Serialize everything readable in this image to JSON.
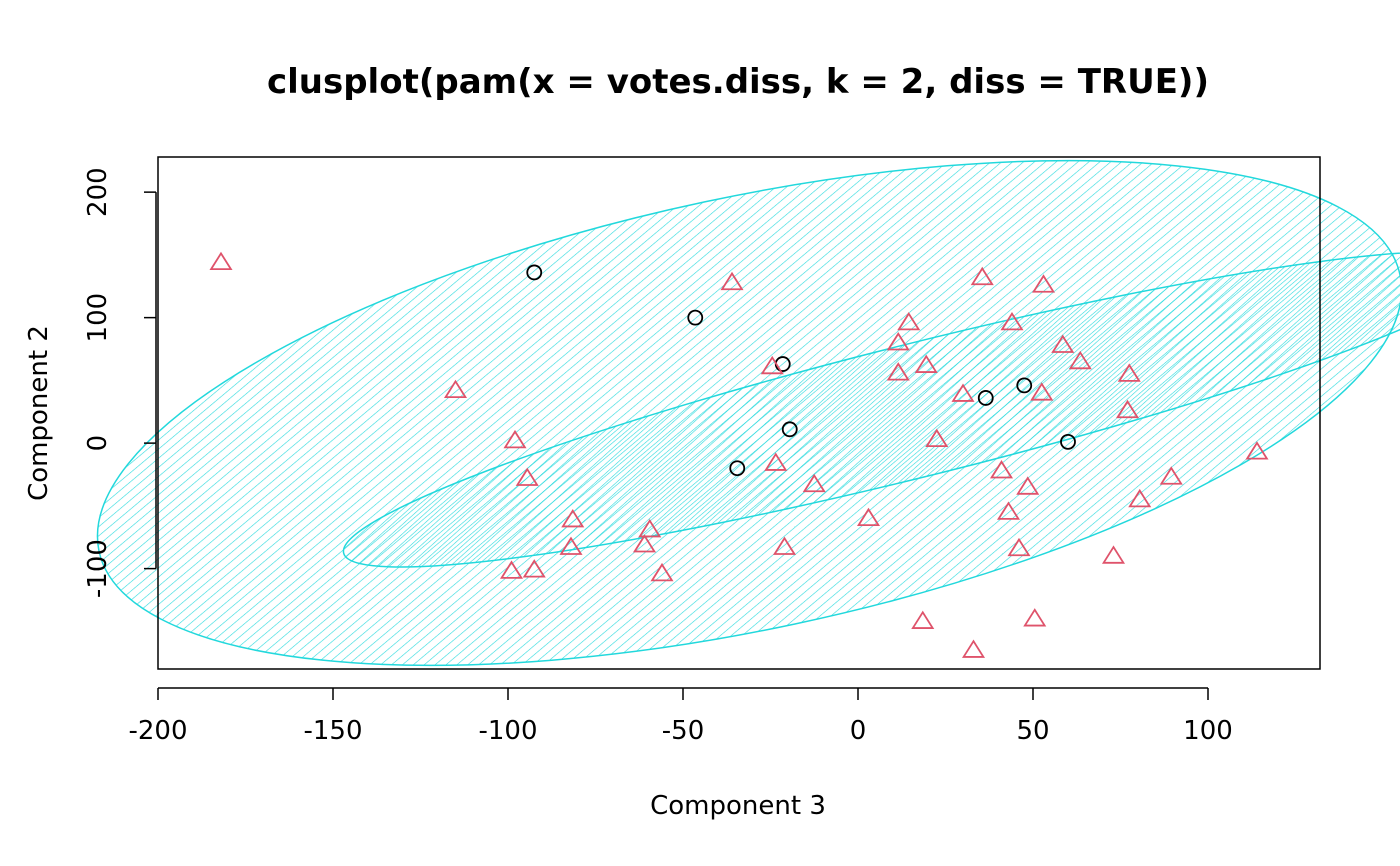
{
  "chart_data": {
    "type": "scatter",
    "title": "clusplot(pam(x = votes.diss, k = 2, diss = TRUE))",
    "xlabel": "Component 3",
    "ylabel": "Component 2",
    "xlim": [
      -200,
      132
    ],
    "ylim": [
      -180,
      228
    ],
    "xticks": [
      -200,
      -150,
      -100,
      -50,
      0,
      50,
      100
    ],
    "yticks": [
      -100,
      0,
      100,
      200
    ],
    "grid": false,
    "colors": {
      "cluster_fill": "#22d8dc",
      "cluster_border": "#22d8dc",
      "circle_points": "#000000",
      "triangle_points": "#df536b"
    },
    "clusters": [
      {
        "center": [
          -31,
          24
        ],
        "rx": 190,
        "ry": 172,
        "angle_deg": -12
      },
      {
        "center": [
          18,
          27
        ],
        "rx": 170,
        "ry": 53,
        "angle_deg": -14
      }
    ],
    "series": [
      {
        "marker": "circle",
        "points": [
          [
            -92.5,
            136
          ],
          [
            -46.5,
            100
          ],
          [
            -21.5,
            63
          ],
          [
            -19.5,
            11
          ],
          [
            -34.5,
            -20
          ],
          [
            36.5,
            36
          ],
          [
            47.5,
            46
          ],
          [
            60,
            1
          ]
        ]
      },
      {
        "marker": "triangle",
        "points": [
          [
            -182,
            144
          ],
          [
            -36,
            128
          ],
          [
            35.5,
            132
          ],
          [
            53,
            126
          ],
          [
            14.5,
            96
          ],
          [
            44,
            96
          ],
          [
            11.5,
            80
          ],
          [
            58.5,
            78
          ],
          [
            63.5,
            65
          ],
          [
            -24.5,
            61
          ],
          [
            19.5,
            62
          ],
          [
            11.5,
            56
          ],
          [
            77.5,
            55
          ],
          [
            -115,
            42
          ],
          [
            30,
            39
          ],
          [
            52.5,
            40
          ],
          [
            77,
            26
          ],
          [
            -98,
            2
          ],
          [
            22.5,
            3
          ],
          [
            114,
            -7
          ],
          [
            -23.5,
            -16
          ],
          [
            41,
            -22
          ],
          [
            89.5,
            -27
          ],
          [
            -94.5,
            -28
          ],
          [
            -12.5,
            -33
          ],
          [
            48.5,
            -35
          ],
          [
            80.5,
            -45
          ],
          [
            -81.5,
            -61
          ],
          [
            3,
            -60
          ],
          [
            43,
            -55
          ],
          [
            -59.5,
            -69
          ],
          [
            -61,
            -81
          ],
          [
            -82,
            -83
          ],
          [
            -21,
            -83
          ],
          [
            46,
            -84
          ],
          [
            73,
            -90
          ],
          [
            -99,
            -102
          ],
          [
            -92.5,
            -101
          ],
          [
            -56,
            -104
          ],
          [
            18.5,
            -142
          ],
          [
            50.5,
            -140
          ],
          [
            33,
            -165
          ]
        ]
      }
    ]
  }
}
